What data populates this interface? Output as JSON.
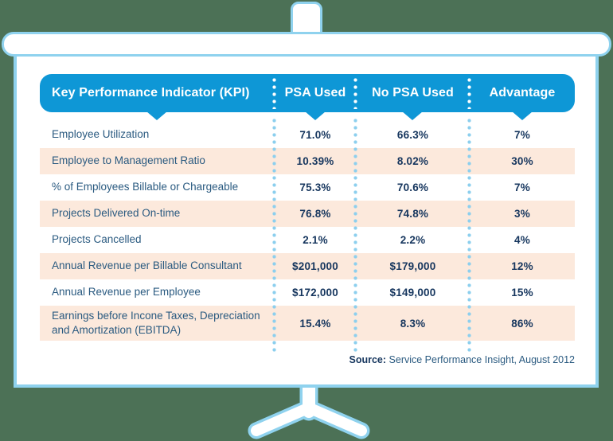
{
  "colors": {
    "background": "#4c7156",
    "frame_border": "#8fd2ee",
    "header_blue": "#0e97d6",
    "header_text": "#ffffff",
    "row_alt": "#fce9dc",
    "label_text": "#2a5a80",
    "value_text": "#16365e",
    "dots_header": "#ffffff",
    "dots_body": "#8ccfee"
  },
  "table": {
    "columns": [
      "Key Performance Indicator (KPI)",
      "PSA Used",
      "No PSA Used",
      "Advantage"
    ],
    "rows": [
      [
        "Employee Utilization",
        "71.0%",
        "66.3%",
        "7%"
      ],
      [
        "Employee to Management Ratio",
        "10.39%",
        "8.02%",
        "30%"
      ],
      [
        "% of Employees Billable or Chargeable",
        "75.3%",
        "70.6%",
        "7%"
      ],
      [
        "Projects Delivered On-time",
        "76.8%",
        "74.8%",
        "3%"
      ],
      [
        "Projects Cancelled",
        "2.1%",
        "2.2%",
        "4%"
      ],
      [
        "Annual Revenue per Billable Consultant",
        "$201,000",
        "$179,000",
        "12%"
      ],
      [
        "Annual Revenue per Employee",
        "$172,000",
        "$149,000",
        "15%"
      ],
      [
        "Earnings before Incone Taxes, Depreciation and Amortization (EBITDA)",
        "15.4%",
        "8.3%",
        "86%"
      ]
    ],
    "source_label": "Source:",
    "source_text": "Service Performance Insight, August 2012"
  },
  "chart_data": {
    "type": "table",
    "title": "Key Performance Indicator (KPI) comparison: PSA Used vs No PSA Used",
    "columns": [
      "Key Performance Indicator (KPI)",
      "PSA Used",
      "No PSA Used",
      "Advantage"
    ],
    "rows": [
      {
        "kpi": "Employee Utilization",
        "psa_used": "71.0%",
        "no_psa_used": "66.3%",
        "advantage": "7%"
      },
      {
        "kpi": "Employee to Management Ratio",
        "psa_used": "10.39%",
        "no_psa_used": "8.02%",
        "advantage": "30%"
      },
      {
        "kpi": "% of Employees Billable or Chargeable",
        "psa_used": "75.3%",
        "no_psa_used": "70.6%",
        "advantage": "7%"
      },
      {
        "kpi": "Projects Delivered On-time",
        "psa_used": "76.8%",
        "no_psa_used": "74.8%",
        "advantage": "3%"
      },
      {
        "kpi": "Projects Cancelled",
        "psa_used": "2.1%",
        "no_psa_used": "2.2%",
        "advantage": "4%"
      },
      {
        "kpi": "Annual Revenue per Billable Consultant",
        "psa_used": "$201,000",
        "no_psa_used": "$179,000",
        "advantage": "12%"
      },
      {
        "kpi": "Annual Revenue per Employee",
        "psa_used": "$172,000",
        "no_psa_used": "$149,000",
        "advantage": "15%"
      },
      {
        "kpi": "Earnings before Incone Taxes, Depreciation and Amortization (EBITDA)",
        "psa_used": "15.4%",
        "no_psa_used": "8.3%",
        "advantage": "86%"
      }
    ],
    "source": "Service Performance Insight, August 2012"
  }
}
